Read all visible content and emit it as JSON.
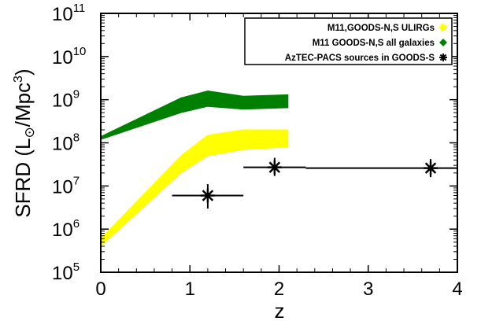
{
  "chart_data": {
    "type": "area",
    "title": "",
    "xlabel": "z",
    "ylabel": "SFRD (L⊙/Mpc³)",
    "ylabel_parts": {
      "prefix": "SFRD  (L",
      "sun": "⊙",
      "mid": "/Mpc",
      "sup": "3",
      "suffix": ")"
    },
    "x_scale": "linear",
    "y_scale": "log",
    "xlim": [
      0,
      4
    ],
    "ylim_exp": [
      5,
      11
    ],
    "x_ticks": [
      0,
      1,
      2,
      3,
      4
    ],
    "y_tick_exponents": [
      5,
      6,
      7,
      8,
      9,
      10,
      11
    ],
    "y_tick_base": "10",
    "legend_position": "top-right",
    "series": [
      {
        "name": "M11,GOODS-N,S ULIRGs",
        "color": "#ffff00",
        "marker": "star",
        "band": {
          "x": [
            0,
            0.9,
            1.2,
            1.6,
            2.1
          ],
          "y_low": [
            400000,
            20000000,
            50000000,
            70000000,
            80000000
          ],
          "y_high": [
            600000,
            50000000,
            150000000,
            200000000,
            200000000
          ]
        }
      },
      {
        "name": "M11 GOODS-N,S all galaxies",
        "color": "#008000",
        "marker": "diamond",
        "band": {
          "x": [
            0,
            0.9,
            1.2,
            1.6,
            2.1
          ],
          "y_low": [
            120000000,
            500000000,
            700000000,
            600000000,
            650000000
          ],
          "y_high": [
            140000000,
            1100000000,
            1600000000,
            1200000000,
            1300000000
          ]
        }
      },
      {
        "name": "AzTEC-PACS sources in GOODS-S",
        "color": "#000000",
        "marker": "asterisk",
        "points": [
          {
            "x": 1.2,
            "y": 6000000,
            "xerr": [
              0.8,
              1.6
            ],
            "yerr": [
              3000000,
              11000000
            ]
          },
          {
            "x": 1.95,
            "y": 27000000,
            "xerr": [
              1.6,
              2.3
            ],
            "yerr": [
              17000000,
              45000000
            ]
          },
          {
            "x": 3.7,
            "y": 26000000,
            "xerr": [
              2.3,
              4.0
            ],
            "yerr": [
              16000000,
              42000000
            ]
          }
        ]
      }
    ]
  }
}
